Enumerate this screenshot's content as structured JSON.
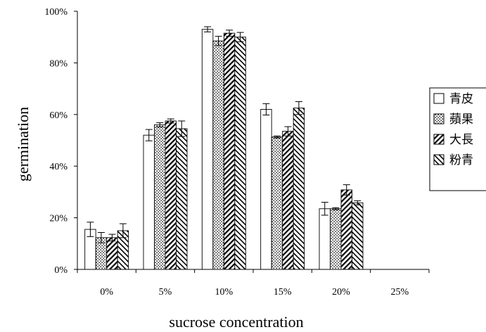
{
  "chart_data": {
    "type": "bar",
    "title": "",
    "xlabel": "sucrose concentration",
    "ylabel": "germination",
    "categories": [
      "0%",
      "5%",
      "10%",
      "15%",
      "20%",
      "25%"
    ],
    "ylim": [
      0,
      100
    ],
    "yticks": [
      "0%",
      "20%",
      "40%",
      "60%",
      "80%",
      "100%"
    ],
    "grid": false,
    "legend_position": "right",
    "series": [
      {
        "name": "青皮",
        "pattern": "solid-white",
        "values": [
          15.5,
          52,
          93,
          62,
          23.5,
          null
        ],
        "errors": [
          2.8,
          2.2,
          1.0,
          2.2,
          2.5,
          null
        ]
      },
      {
        "name": "蘋果",
        "pattern": "dots",
        "values": [
          12.3,
          56,
          88.5,
          51.3,
          23.5,
          null
        ],
        "errors": [
          2.0,
          0.8,
          1.8,
          0.4,
          0.4,
          null
        ]
      },
      {
        "name": "大長",
        "pattern": "forward-diagonal",
        "values": [
          12.3,
          57.5,
          91.5,
          53.5,
          30.8,
          null
        ],
        "errors": [
          1.3,
          0.8,
          1.2,
          1.8,
          2.0,
          null
        ]
      },
      {
        "name": "粉青",
        "pattern": "back-diagonal",
        "values": [
          15,
          54.5,
          90,
          62.5,
          25.8,
          null
        ],
        "errors": [
          2.7,
          3.0,
          1.8,
          2.5,
          0.8,
          null
        ]
      }
    ],
    "colors": {
      "fill": "#ffffff",
      "stroke": "#000000"
    }
  }
}
